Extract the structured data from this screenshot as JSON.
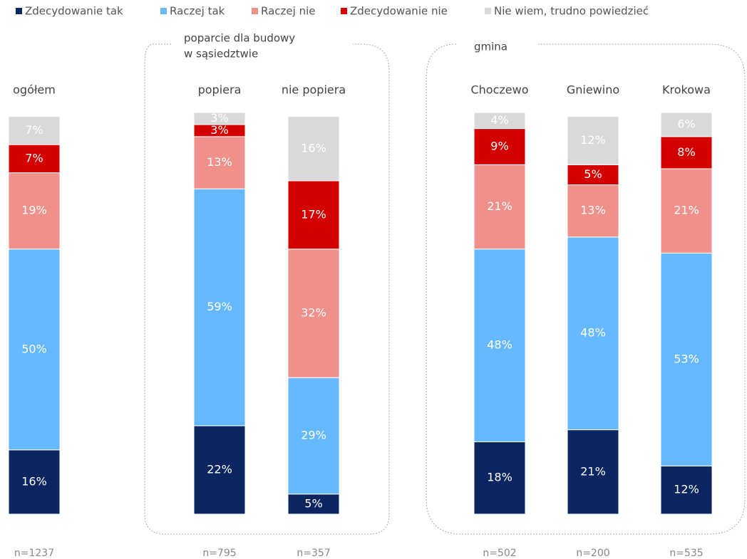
{
  "chart_data": {
    "type": "stacked_bar",
    "categories": [
      "ogółem",
      "popiera",
      "nie popiera",
      "Choczewo",
      "Gniewino",
      "Krokowa"
    ],
    "n_labels": [
      "n=1237",
      "n=795",
      "n=357",
      "n=502",
      "n=200",
      "n=535"
    ],
    "groups": [
      {
        "label": [
          "poparcie dla budowy",
          "w sąsiedztwie"
        ]
      },
      {
        "label": [
          "gmina"
        ]
      }
    ],
    "series": [
      {
        "name": "Zdecydowanie tak",
        "color": "#0b2560",
        "values": [
          16,
          22,
          5,
          18,
          21,
          12
        ],
        "value_labels": [
          "16%",
          "22%",
          "5%",
          "18%",
          "21%",
          "12%"
        ]
      },
      {
        "name": "Raczej tak",
        "color": "#66b8ff",
        "values": [
          50,
          59,
          29,
          48,
          48,
          53
        ],
        "value_labels": [
          "50%",
          "59%",
          "29%",
          "48%",
          "48%",
          "53%"
        ]
      },
      {
        "name": "Raczej nie",
        "color": "#f0908a",
        "values": [
          19,
          13,
          32,
          21,
          13,
          21
        ],
        "value_labels": [
          "19%",
          "13%",
          "32%",
          "21%",
          "13%",
          "21%"
        ]
      },
      {
        "name": "Zdecydowanie nie",
        "color": "#d40000",
        "values": [
          7,
          3,
          17,
          9,
          5,
          8
        ],
        "value_labels": [
          "7%",
          "3%",
          "17%",
          "9%",
          "5%",
          "8%"
        ]
      },
      {
        "name": "Nie wiem, trudno powiedzieć",
        "color": "#d9d9d9",
        "values": [
          7,
          3,
          16,
          4,
          12,
          6
        ],
        "value_labels": [
          "7%",
          "3%",
          "16%",
          "4%",
          "12%",
          "6%"
        ]
      }
    ],
    "legend": "top"
  }
}
